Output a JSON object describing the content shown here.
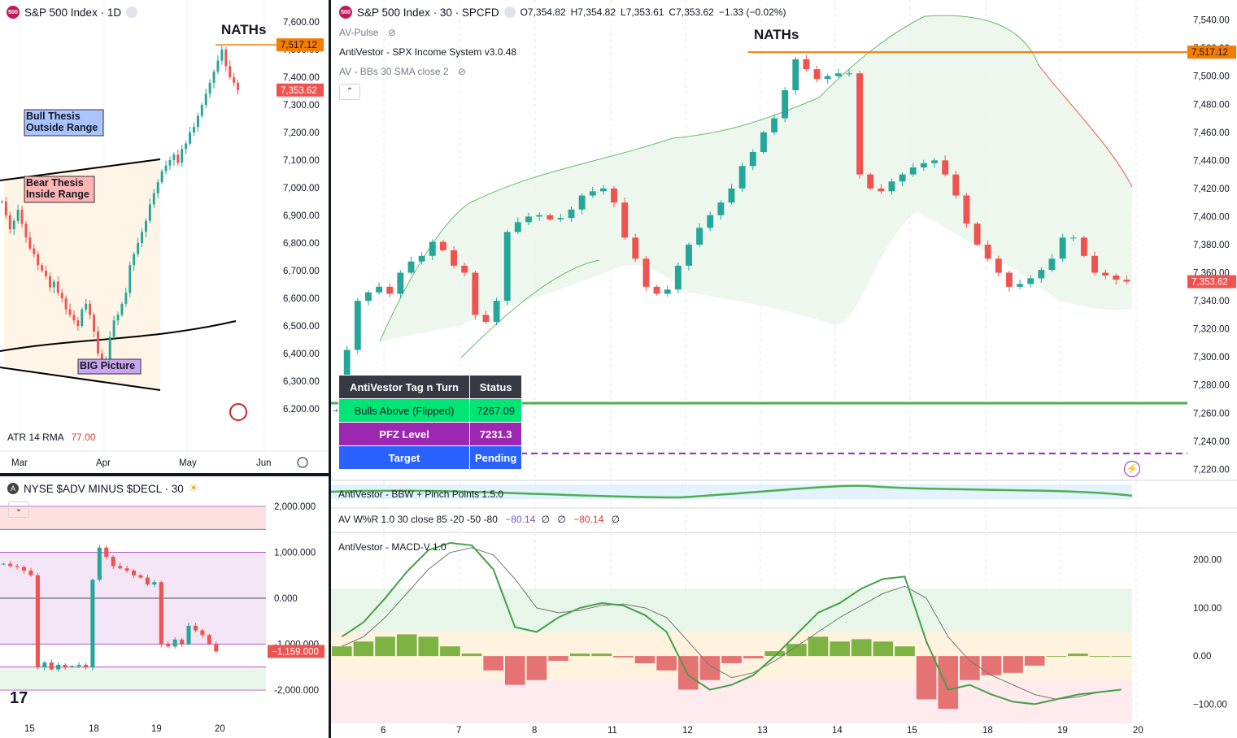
{
  "left_top": {
    "title": "S&P 500 Index · 1D",
    "y_ticks": [
      "7,600.00",
      "7,500.00",
      "7,400.00",
      "7,300.00",
      "7,200.00",
      "7,100.00",
      "7,000.00",
      "6,900.00",
      "6,800.00",
      "6,700.00",
      "6,600.00",
      "6,500.00",
      "6,400.00",
      "6,300.00",
      "6,200.00"
    ],
    "x_ticks": [
      "Mar",
      "Apr",
      "May",
      "Jun"
    ],
    "naths_label": "NATHs",
    "price_tag_high": "7,517.12",
    "price_tag_last": "7,353.62",
    "boxes": {
      "bull": "Bull Thesis\nOutside Range",
      "bear": "Bear Thesis\nInside Range",
      "big": "BIG Picture"
    },
    "atr_label": "ATR 14 RMA",
    "atr_value": "77.00",
    "colors": {
      "bull_box": "#aac4ff",
      "bear_box": "#ffb3b3",
      "big_box": "#c9a5f0",
      "range_fill": "#fff3e0"
    }
  },
  "left_bottom": {
    "title": "NYSE $ADV MINUS $DECL · 30",
    "y_ticks": [
      "2,000.000",
      "1,000.000",
      "0.000",
      "-1,000.000",
      "-2,000.000"
    ],
    "x_ticks": [
      "15",
      "18",
      "19",
      "20"
    ],
    "price_tag_last": "−1,159.000"
  },
  "main": {
    "title": "S&P 500 Index · 30 · SPCFD",
    "ohlc": {
      "o": "O7,354.82",
      "h": "H7,354.82",
      "l": "L7,353.61",
      "c": "C7,353.62",
      "chg": "−1.33 (−0.02%)"
    },
    "indicators": [
      "AV-Pulse",
      "AntiVestor - SPX Income System v3.0.48",
      "AV - BBs 30 SMA close 2"
    ],
    "naths_label": "NATHs",
    "y_ticks": [
      "7,540.00",
      "7,520.00",
      "7,500.00",
      "7,480.00",
      "7,460.00",
      "7,440.00",
      "7,420.00",
      "7,400.00",
      "7,380.00",
      "7,360.00",
      "7,340.00",
      "7,320.00",
      "7,300.00",
      "7,280.00",
      "7,260.00",
      "7,240.00",
      "7,220.00"
    ],
    "x_ticks": [
      "6",
      "7",
      "8",
      "11",
      "12",
      "13",
      "14",
      "15",
      "18",
      "19",
      "20"
    ],
    "price_tag_high": "7,517.12",
    "price_tag_last": "7,353.62",
    "table": {
      "headers": [
        "AntiVestor Tag n Turn",
        "Status"
      ],
      "rows": [
        {
          "label": "Bulls Above (Flipped)",
          "value": "7267.09",
          "color": "#00e676"
        },
        {
          "label": "PFZ Level",
          "value": "7231.3",
          "color": "#9c27b0"
        },
        {
          "label": "Target",
          "value": "Pending",
          "color": "#2962ff"
        }
      ]
    }
  },
  "sub1": {
    "bbw_label": "AntiVestor - BBW + Pinch Points 1.5.0",
    "wr_label": "AV W%R 1.0 30 close 85 -20 -50 -80",
    "wr_value1": "−80.14",
    "wr_value2": "−80.14",
    "wr_empty1": "∅",
    "wr_empty2": "∅",
    "wr_empty3": "∅"
  },
  "macd": {
    "label": "AntiVestor - MACD-V 1.0",
    "y_ticks": [
      "200.00",
      "100.00",
      "0.00",
      "−100.00"
    ]
  },
  "chart_data": [
    {
      "type": "candlestick",
      "title": "S&P 500 Index · 1D",
      "ylim": [
        6150,
        7650
      ],
      "x_ticks": [
        "Mar",
        "Apr",
        "May",
        "Jun"
      ],
      "close": [
        6950,
        6900,
        6850,
        6880,
        6920,
        6870,
        6820,
        6780,
        6760,
        6720,
        6700,
        6680,
        6640,
        6660,
        6620,
        6600,
        6560,
        6540,
        6520,
        6500,
        6560,
        6580,
        6540,
        6480,
        6400,
        6350,
        6380,
        6460,
        6520,
        6540,
        6580,
        6620,
        6720,
        6760,
        6800,
        6840,
        6880,
        6940,
        6980,
        7020,
        7060,
        7080,
        7100,
        7120,
        7090,
        7140,
        7160,
        7200,
        7220,
        7260,
        7300,
        7340,
        7380,
        7420,
        7460,
        7500,
        7440,
        7400,
        7380,
        7353.62
      ],
      "reference_levels": {
        "naths": 7517.12,
        "last": 7353.62
      },
      "y_ticks": [
        7600,
        7500,
        7400,
        7300,
        7200,
        7100,
        7000,
        6900,
        6800,
        6700,
        6600,
        6500,
        6400,
        6300,
        6200
      ]
    },
    {
      "type": "candlestick",
      "title": "NYSE $ADV MINUS $DECL · 30",
      "ylim": [
        -2300,
        2300
      ],
      "x_ticks": [
        "15",
        "18",
        "19",
        "20"
      ],
      "close": [
        750,
        700,
        680,
        600,
        500,
        -1500,
        -1400,
        -1550,
        -1450,
        -1500,
        -1480,
        -1450,
        -1500,
        400,
        1100,
        900,
        700,
        650,
        600,
        500,
        450,
        300,
        350,
        -1000,
        -1050,
        -900,
        -1000,
        -600,
        -700,
        -800,
        -1000,
        -1159
      ],
      "y_ticks": [
        2000,
        1000,
        0,
        -1000,
        -2000
      ]
    },
    {
      "type": "candlestick",
      "title": "S&P 500 Index · 30 · SPCFD",
      "ylim": [
        7215,
        7545
      ],
      "x_ticks": [
        "6",
        "7",
        "8",
        "11",
        "12",
        "13",
        "14",
        "15",
        "18",
        "19",
        "20"
      ],
      "close": [
        7262,
        7305,
        7340,
        7346,
        7350,
        7345,
        7360,
        7368,
        7372,
        7382,
        7376,
        7365,
        7360,
        7330,
        7325,
        7340,
        7389,
        7396,
        7400,
        7401,
        7398,
        7399,
        7405,
        7415,
        7418,
        7420,
        7410,
        7385,
        7370,
        7350,
        7345,
        7348,
        7365,
        7380,
        7392,
        7401,
        7410,
        7420,
        7436,
        7446,
        7460,
        7470,
        7490,
        7512,
        7505,
        7498,
        7500,
        7502,
        7502,
        7430,
        7420,
        7418,
        7425,
        7430,
        7435,
        7438,
        7440,
        7430,
        7415,
        7395,
        7380,
        7370,
        7360,
        7350,
        7352,
        7356,
        7362,
        7370,
        7385,
        7385,
        7372,
        7360,
        7358,
        7355,
        7353.62
      ],
      "reference_levels": {
        "naths": 7517.12,
        "bulls_above": 7267.09,
        "pfz": 7231.3,
        "last": 7353.62
      },
      "y_ticks": [
        7540,
        7520,
        7500,
        7480,
        7460,
        7440,
        7420,
        7400,
        7380,
        7360,
        7340,
        7320,
        7300,
        7280,
        7260,
        7240,
        7220
      ]
    },
    {
      "type": "bar",
      "title": "AntiVestor - MACD-V 1.0",
      "ylim": [
        -140,
        240
      ],
      "y_ticks": [
        200,
        100,
        0,
        -100
      ],
      "macd_line": [
        40,
        70,
        120,
        175,
        220,
        235,
        230,
        180,
        60,
        50,
        80,
        100,
        110,
        105,
        85,
        50,
        -40,
        -70,
        -60,
        -40,
        0,
        45,
        90,
        110,
        140,
        160,
        165,
        30,
        -70,
        -60,
        -80,
        -95,
        -100,
        -90,
        -80,
        -75,
        -70
      ],
      "signal_line": [
        20,
        40,
        80,
        130,
        180,
        215,
        225,
        210,
        160,
        100,
        90,
        95,
        105,
        108,
        100,
        80,
        30,
        -20,
        -45,
        -35,
        -10,
        20,
        50,
        80,
        105,
        130,
        145,
        120,
        40,
        -10,
        -40,
        -60,
        -80,
        -90,
        -85,
        -75,
        -70
      ],
      "histogram": [
        20,
        30,
        40,
        45,
        40,
        20,
        5,
        -30,
        -60,
        -50,
        -10,
        5,
        5,
        -3,
        -15,
        -30,
        -70,
        -50,
        -15,
        -5,
        10,
        25,
        40,
        30,
        35,
        30,
        20,
        -90,
        -110,
        -50,
        -40,
        -35,
        -20,
        0,
        5,
        0,
        0
      ]
    }
  ]
}
